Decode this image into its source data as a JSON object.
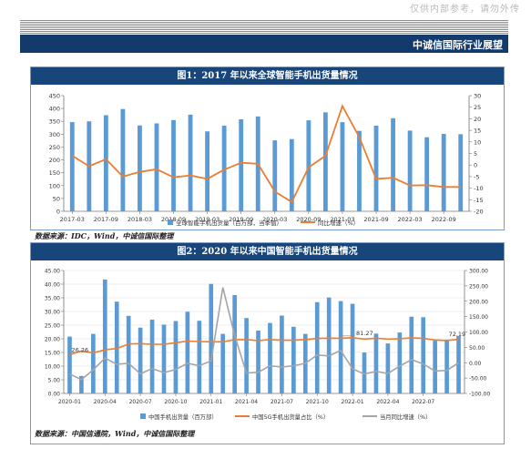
{
  "header": {
    "watermark": "仅供内部参考，请勿外传",
    "brand": "中诚信国际行业展望"
  },
  "chart1": {
    "title": "图1：2017 年以来全球智能手机出货量情况",
    "source": "数据来源：IDC，Wind，中诚信国际整理",
    "colors": {
      "bar": "#5b9bd5",
      "line": "#ed7d31"
    }
  },
  "chart2": {
    "title": "图2：2020 年以来中国智能手机出货量情况",
    "source": "数据来源：中国信通院，Wind，中诚信国际整理",
    "colors": {
      "bar": "#5b9bd5",
      "line5g": "#ed7d31",
      "yoy": "#a5a5a5"
    }
  },
  "chart_data": [
    {
      "type": "bar",
      "title": "图1：2017 年以来全球智能手机出货量情况",
      "categories": [
        "2017-03",
        "2017-06",
        "2017-09",
        "2017-12",
        "2018-03",
        "2018-06",
        "2018-09",
        "2018-12",
        "2019-03",
        "2019-06",
        "2019-09",
        "2019-12",
        "2020-03",
        "2020-06",
        "2020-09",
        "2020-12",
        "2021-03",
        "2021-06",
        "2021-09",
        "2021-12",
        "2022-03",
        "2022-06",
        "2022-09",
        "2022-12"
      ],
      "tick_labels": [
        "2017-03",
        "2017-09",
        "2018-03",
        "2018-09",
        "2019-03",
        "2019-09",
        "2020-03",
        "2020-09",
        "2021-03",
        "2021-09",
        "2022-03",
        "2022-09"
      ],
      "series": [
        {
          "name": "全球智能手机出货量（百万部，当季值）",
          "type": "bar",
          "axis": "left",
          "values": [
            347,
            350,
            374,
            398,
            334,
            342,
            355,
            376,
            311,
            333,
            358,
            369,
            276,
            281,
            354,
            385,
            347,
            313,
            333,
            362,
            314,
            288,
            301,
            300
          ]
        },
        {
          "name": "同比增速（%）",
          "type": "line",
          "axis": "right",
          "values": [
            4,
            -0.5,
            2.5,
            -5,
            -3,
            -1.8,
            -5.3,
            -4.5,
            -6,
            -2,
            1,
            0.5,
            -11.5,
            -16,
            -1,
            4,
            25.5,
            12,
            -6,
            -5.5,
            -8.8,
            -8.7,
            -9.5,
            -9.5
          ]
        }
      ],
      "y_left": {
        "min": 0,
        "max": 450,
        "ticks": [
          "0",
          "50",
          "100",
          "150",
          "200",
          "250",
          "300",
          "350",
          "400",
          "450"
        ]
      },
      "y_right": {
        "min": -20,
        "max": 30,
        "ticks": [
          "-20",
          "-15",
          "-10",
          "-5",
          "0",
          "5",
          "10",
          "15",
          "20",
          "25",
          "30"
        ]
      },
      "legend_position": "bottom",
      "grid": false
    },
    {
      "type": "bar",
      "title": "图2：2020 年以来中国智能手机出货量情况",
      "categories": [
        "2020-01",
        "2020-02",
        "2020-03",
        "2020-04",
        "2020-05",
        "2020-06",
        "2020-07",
        "2020-08",
        "2020-09",
        "2020-10",
        "2020-11",
        "2020-12",
        "2021-01",
        "2021-02",
        "2021-03",
        "2021-04",
        "2021-05",
        "2021-06",
        "2021-07",
        "2021-08",
        "2021-09",
        "2021-10",
        "2021-11",
        "2021-12",
        "2022-01",
        "2022-02",
        "2022-03",
        "2022-04",
        "2022-05",
        "2022-06",
        "2022-07",
        "2022-08",
        "2022-09",
        "2022-10"
      ],
      "tick_labels": [
        "2020-01",
        "2020-04",
        "2020-07",
        "2020-10",
        "2021-01",
        "2021-04",
        "2021-07",
        "2021-10",
        "2022-01",
        "2022-04",
        "2022-07"
      ],
      "series": [
        {
          "name": "中国手机出货量（百万部）",
          "type": "bar",
          "axis": "left",
          "values": [
            20.8,
            6.4,
            21.8,
            41.7,
            33.6,
            28.4,
            24.1,
            27.0,
            25.2,
            26.5,
            29.9,
            26.6,
            40.1,
            21.8,
            36.0,
            27.6,
            23.0,
            25.8,
            28.5,
            24.4,
            21.8,
            33.4,
            35.1,
            33.8,
            32.8,
            15.0,
            21.9,
            18.3,
            22.3,
            28.1,
            27.9,
            19.3,
            19.7,
            21.0
          ]
        },
        {
          "name": "中国5G手机出货量占比（%）",
          "type": "line",
          "axis": "right",
          "values": [
            26.26,
            38,
            32,
            42,
            46,
            61,
            62,
            60,
            60,
            65,
            70,
            69,
            68,
            68,
            75,
            75,
            72,
            75,
            73,
            73,
            75,
            79,
            80,
            79.5,
            81.27,
            77,
            80,
            77,
            78,
            81,
            79,
            74,
            72.19,
            76
          ]
        },
        {
          "name": "当月同比增速（%）",
          "type": "line",
          "axis": "right",
          "values": [
            -37,
            -55,
            -23,
            15,
            -5,
            -2,
            -36,
            -19,
            -32,
            -22,
            -2,
            -10,
            6,
            245,
            89,
            -34,
            -31,
            -10,
            -14,
            -10,
            -2,
            25,
            22,
            40,
            -20,
            -37,
            -28,
            -35,
            -11,
            10,
            -4,
            -27,
            -25,
            0
          ]
        }
      ],
      "annotations": [
        "26.26",
        "81.27",
        "72.19"
      ],
      "y_left": {
        "min": 0,
        "max": 45,
        "ticks": [
          "0.00",
          "5.00",
          "10.00",
          "15.00",
          "20.00",
          "25.00",
          "30.00",
          "35.00",
          "40.00",
          "45.00"
        ]
      },
      "y_right": {
        "min": -100,
        "max": 300,
        "ticks": [
          "-100.00",
          "-50.00",
          "0.00",
          "50.00",
          "100.00",
          "150.00",
          "200.00",
          "250.00",
          "300.00"
        ]
      },
      "legend_position": "bottom",
      "grid": true
    }
  ]
}
